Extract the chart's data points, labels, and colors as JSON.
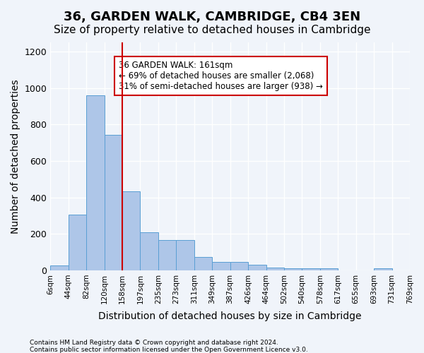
{
  "title": "36, GARDEN WALK, CAMBRIDGE, CB4 3EN",
  "subtitle": "Size of property relative to detached houses in Cambridge",
  "xlabel": "Distribution of detached houses by size in Cambridge",
  "ylabel": "Number of detached properties",
  "bin_labels": [
    "6sqm",
    "44sqm",
    "82sqm",
    "120sqm",
    "158sqm",
    "197sqm",
    "235sqm",
    "273sqm",
    "311sqm",
    "349sqm",
    "387sqm",
    "426sqm",
    "464sqm",
    "502sqm",
    "540sqm",
    "578sqm",
    "617sqm",
    "655sqm",
    "693sqm",
    "731sqm",
    "769sqm"
  ],
  "bar_heights": [
    25,
    305,
    960,
    743,
    432,
    210,
    165,
    165,
    75,
    48,
    48,
    30,
    17,
    10,
    10,
    10,
    0,
    0,
    10,
    0
  ],
  "bar_color": "#aec6e8",
  "bar_edgecolor": "#5a9fd4",
  "vline_x": 4,
  "vline_color": "#cc0000",
  "annotation_text": "36 GARDEN WALK: 161sqm\n← 69% of detached houses are smaller (2,068)\n31% of semi-detached houses are larger (938) →",
  "annotation_box_edgecolor": "#cc0000",
  "annotation_box_facecolor": "white",
  "ylim": [
    0,
    1250
  ],
  "yticks": [
    0,
    200,
    400,
    600,
    800,
    1000,
    1200
  ],
  "bg_color": "#f0f4fa",
  "footnote1": "Contains HM Land Registry data © Crown copyright and database right 2024.",
  "footnote2": "Contains public sector information licensed under the Open Government Licence v3.0.",
  "grid_color": "#ffffff",
  "title_fontsize": 13,
  "subtitle_fontsize": 11,
  "xlabel_fontsize": 10,
  "ylabel_fontsize": 10
}
